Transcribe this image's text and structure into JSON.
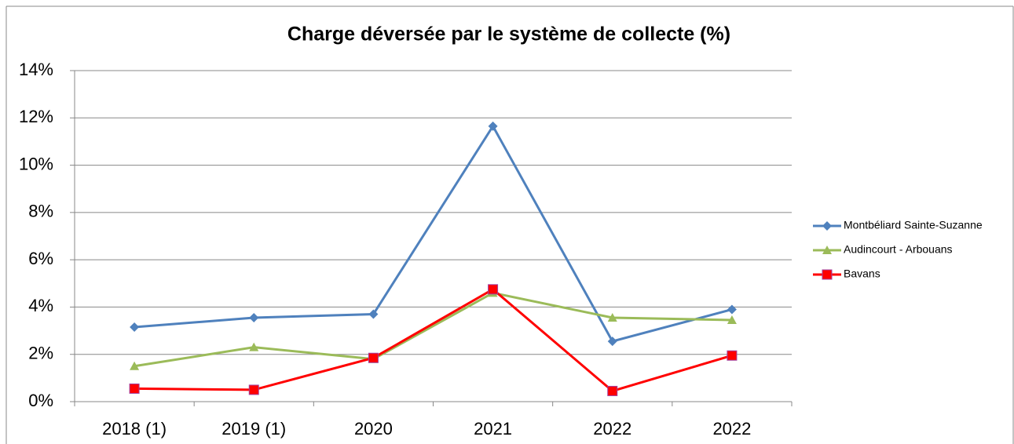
{
  "chart_data": {
    "type": "line",
    "title": "Charge déversée par le système de collecte (%)",
    "categories": [
      "2018 (1)",
      "2019 (1)",
      "2020",
      "2021",
      "2022",
      "2022"
    ],
    "series": [
      {
        "name": "Montbéliard Sainte-Suzanne",
        "color": "#4f81bd",
        "marker": "diamond",
        "values": [
          3.15,
          3.55,
          3.7,
          11.65,
          2.55,
          3.9
        ]
      },
      {
        "name": "Audincourt - Arbouans",
        "color": "#9bbb59",
        "marker": "triangle",
        "values": [
          1.5,
          2.3,
          1.8,
          4.6,
          3.55,
          3.45
        ]
      },
      {
        "name": "Bavans",
        "color": "#ff0000",
        "marker": "square",
        "values": [
          0.55,
          0.5,
          1.85,
          4.75,
          0.45,
          1.95
        ]
      }
    ],
    "ylim": [
      0,
      14
    ],
    "yticks": [
      {
        "value": 0,
        "label": "0%"
      },
      {
        "value": 2,
        "label": "2%"
      },
      {
        "value": 4,
        "label": "4%"
      },
      {
        "value": 6,
        "label": "6%"
      },
      {
        "value": 8,
        "label": "8%"
      },
      {
        "value": 10,
        "label": "10%"
      },
      {
        "value": 12,
        "label": "12%"
      },
      {
        "value": 14,
        "label": "14%"
      }
    ],
    "grid": true,
    "legend": "right"
  }
}
